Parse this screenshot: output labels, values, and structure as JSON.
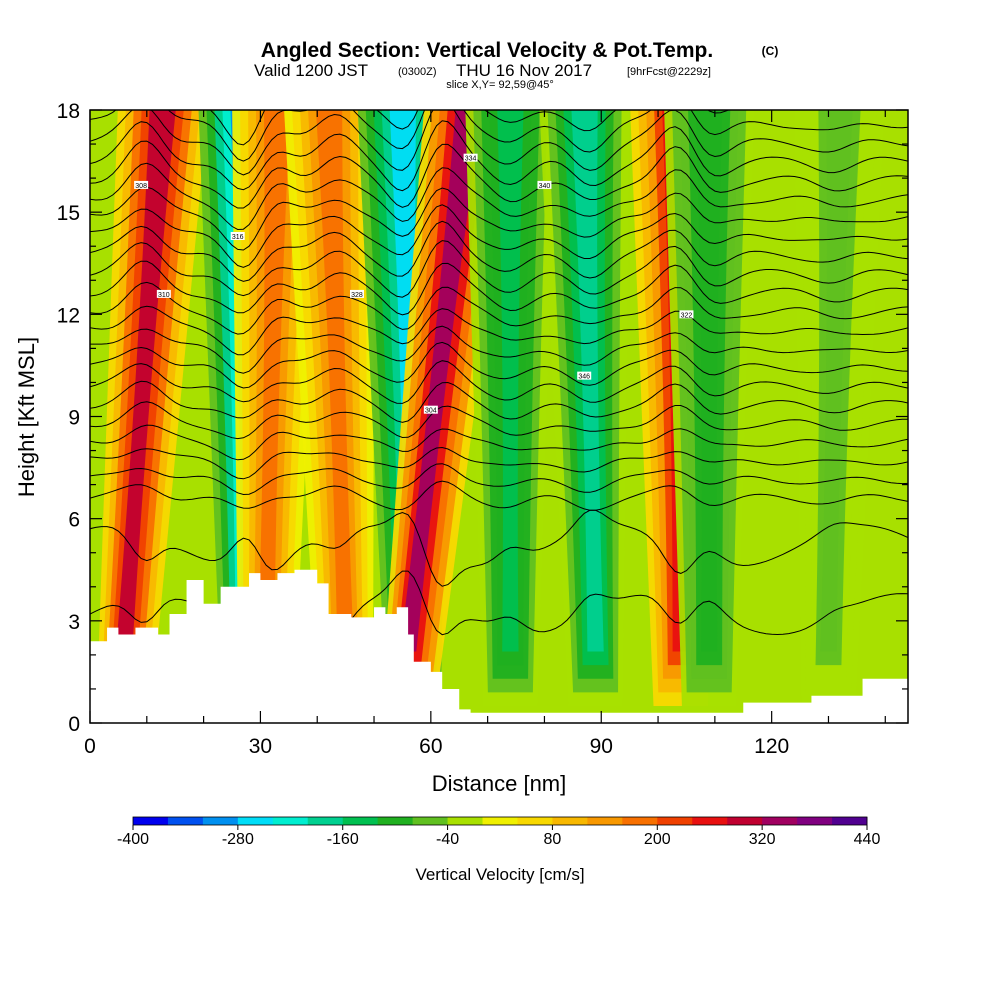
{
  "chart_data": {
    "type": "heatmap",
    "title": "Angled Section: Vertical Velocity & Pot.Temp.",
    "title_mark": "(C)",
    "subtitle_valid": "Valid 1200 JST",
    "subtitle_zulu": "(0300Z)",
    "subtitle_date": "THU 16 Nov 2017",
    "subtitle_fcst": "[9hrFcst@2229z]",
    "slice_text": "slice X,Y= 92,59@45°",
    "xlabel": "Distance [nm]",
    "ylabel": "Height [Kft MSL]",
    "xlim": [
      0,
      144
    ],
    "ylim": [
      0,
      18
    ],
    "x_ticks": [
      "0",
      "30",
      "60",
      "90",
      "120"
    ],
    "x_tick_values": [
      0,
      30,
      60,
      90,
      120
    ],
    "y_ticks": [
      "0",
      "3",
      "6",
      "9",
      "12",
      "15",
      "18"
    ],
    "y_tick_values": [
      0,
      3,
      6,
      9,
      12,
      15,
      18
    ],
    "colorbar": {
      "title": "Vertical Velocity [cm/s]",
      "labels": [
        "-400",
        "-280",
        "-160",
        "-40",
        "80",
        "200",
        "320",
        "440"
      ],
      "label_values": [
        -400,
        -280,
        -160,
        -40,
        80,
        200,
        320,
        440
      ],
      "min": -400,
      "max": 440,
      "colors": [
        "#0000ee",
        "#0050f0",
        "#0090f0",
        "#00ddf8",
        "#00eed0",
        "#00d090",
        "#00c050",
        "#20b020",
        "#60c020",
        "#a8e000",
        "#f0f000",
        "#f8d800",
        "#f8b800",
        "#f89800",
        "#f87000",
        "#f04000",
        "#e81010",
        "#c00030",
        "#a00060",
        "#800080",
        "#500090"
      ]
    },
    "terrain": {
      "x": [
        0,
        3,
        5,
        8,
        12,
        14,
        17,
        20,
        23,
        28,
        30,
        33,
        36,
        40,
        42,
        46,
        50,
        52,
        54,
        56,
        57,
        60,
        62,
        65,
        67,
        70,
        74,
        80,
        90,
        100,
        105,
        110,
        115,
        120,
        127,
        136,
        144
      ],
      "height": [
        2.4,
        2.8,
        2.6,
        2.8,
        2.6,
        3.2,
        4.2,
        3.5,
        4.0,
        4.4,
        4.2,
        4.4,
        4.5,
        4.1,
        3.2,
        3.1,
        3.4,
        3.2,
        3.4,
        2.6,
        1.8,
        1.5,
        1.0,
        0.4,
        0.3,
        0.3,
        0.3,
        0.3,
        0.3,
        0.3,
        0.3,
        0.3,
        0.6,
        0.6,
        0.8,
        1.3,
        1.3
      ]
    },
    "velocity_bands": [
      {
        "x_top": 13,
        "x_bottom": 6,
        "value": 280
      },
      {
        "x_top": 27,
        "x_bottom": 28,
        "value": -300
      },
      {
        "x_top": 33,
        "x_bottom": 31,
        "value": 160
      },
      {
        "x_top": 42,
        "x_bottom": 45,
        "value": 180
      },
      {
        "x_top": 55,
        "x_bottom": 57,
        "value": -250
      },
      {
        "x_top": 67,
        "x_bottom": 56,
        "value": 330
      },
      {
        "x_top": 74,
        "x_bottom": 74,
        "value": -150
      },
      {
        "x_top": 87,
        "x_bottom": 89,
        "value": -180
      },
      {
        "x_top": 103,
        "x_bottom": 104,
        "value": 260
      },
      {
        "x_top": 109,
        "x_bottom": 109,
        "value": -120
      },
      {
        "x_top": 132,
        "x_bottom": 130,
        "value": -60
      }
    ],
    "contour_labels": [
      "308",
      "316",
      "334",
      "346",
      "322",
      "328",
      "310",
      "304",
      "340"
    ]
  }
}
